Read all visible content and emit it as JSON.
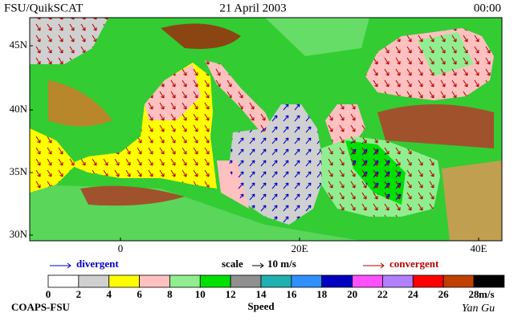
{
  "header": {
    "left": "FSU/QuikSCAT",
    "date": "21 April 2003",
    "time": "00:00"
  },
  "map": {
    "lat_labels": [
      "45N",
      "40N",
      "35N",
      "30N"
    ],
    "lon_labels": [
      "0",
      "20E",
      "40E"
    ]
  },
  "legend": {
    "divergent": "divergent",
    "scale": "scale",
    "scale_value": "10 m/s",
    "convergent": "convergent"
  },
  "colorbar": {
    "ticks": [
      0,
      2,
      4,
      6,
      8,
      10,
      12,
      14,
      16,
      18,
      20,
      22,
      24,
      26,
      28
    ],
    "colors": [
      "#ffffff",
      "#d0d0d0",
      "#ffff00",
      "#ffc0c0",
      "#90ee90",
      "#00e000",
      "#909090",
      "#20b0b0",
      "#3090ff",
      "#0000c0",
      "#ff50ff",
      "#b080ff",
      "#ff0000",
      "#c04000",
      "#000000"
    ],
    "unit": "m/s",
    "title": "Speed"
  },
  "footer": {
    "credit": "COAPS-FSU",
    "author": "Yan Gu"
  }
}
